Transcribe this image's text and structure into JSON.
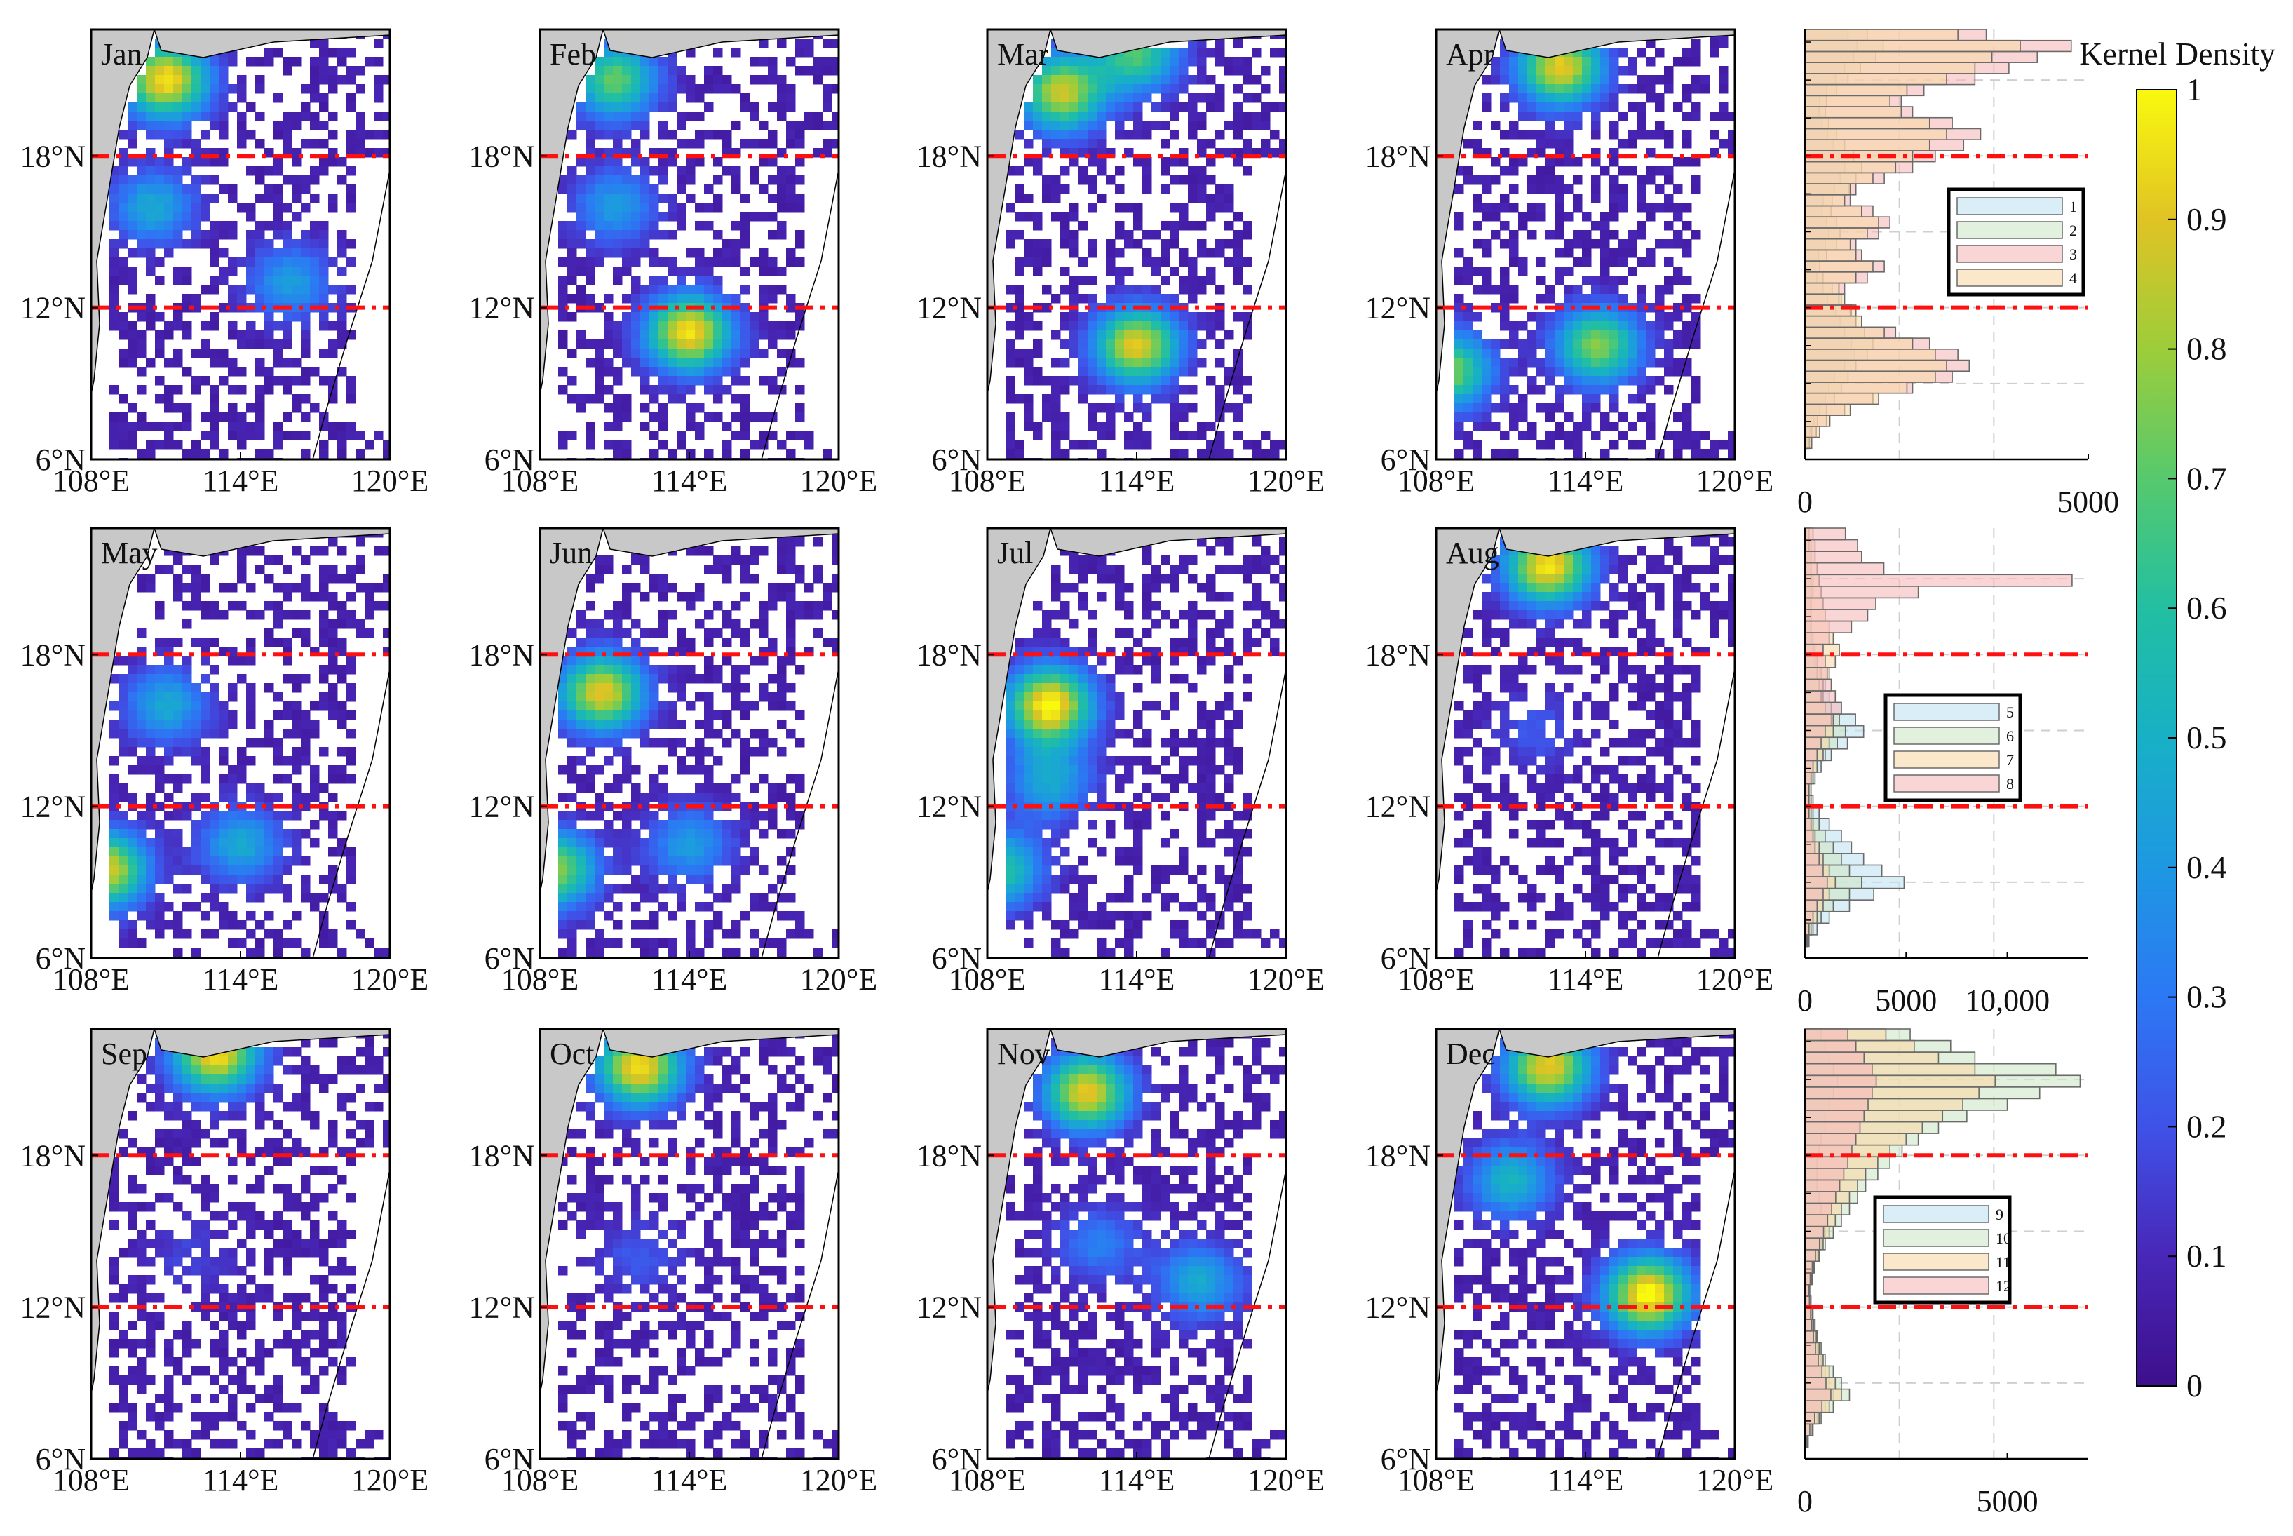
{
  "colorbar": {
    "title": "Kernel Density",
    "ticks": [
      "0",
      "0.1",
      "0.2",
      "0.3",
      "0.4",
      "0.5",
      "0.6",
      "0.7",
      "0.8",
      "0.9",
      "1"
    ],
    "range": [
      0,
      1
    ],
    "colormap": [
      "#3d0f8c",
      "#4827b8",
      "#3f52e8",
      "#2c78f4",
      "#1e98e2",
      "#17b0c6",
      "#22bfa2",
      "#56c96d",
      "#9dcd3a",
      "#e0c324",
      "#f9f90e"
    ]
  },
  "maps": {
    "lon_ticks": [
      "108°E",
      "114°E",
      "120°E"
    ],
    "lat_ticks": [
      "6°N",
      "12°N",
      "18°N"
    ],
    "lon_range": [
      108,
      120
    ],
    "lat_range": [
      6,
      23
    ],
    "reference_lines_lat": [
      12,
      18
    ],
    "reference_line_color": "#ff1010",
    "land_color": "#c8c8c8",
    "months": [
      {
        "label": "Jan",
        "hot": [
          [
            111.0,
            21.0,
            0.9
          ],
          [
            116.0,
            13.0,
            0.35
          ],
          [
            110.5,
            16.0,
            0.4
          ]
        ]
      },
      {
        "label": "Feb",
        "hot": [
          [
            114.0,
            11.0,
            0.9
          ],
          [
            111.0,
            21.0,
            0.65
          ],
          [
            111.0,
            16.0,
            0.35
          ]
        ]
      },
      {
        "label": "Mar",
        "hot": [
          [
            114.0,
            10.5,
            0.85
          ],
          [
            111.0,
            20.5,
            0.8
          ],
          [
            114.0,
            22.0,
            0.6
          ]
        ]
      },
      {
        "label": "Apr",
        "hot": [
          [
            113.0,
            21.5,
            0.85
          ],
          [
            114.5,
            10.5,
            0.7
          ],
          [
            108.5,
            9.5,
            0.7
          ]
        ]
      },
      {
        "label": "May",
        "hot": [
          [
            108.5,
            9.5,
            0.85
          ],
          [
            111.0,
            16.0,
            0.4
          ],
          [
            114.0,
            10.5,
            0.4
          ]
        ]
      },
      {
        "label": "Jun",
        "hot": [
          [
            110.5,
            16.5,
            0.85
          ],
          [
            108.5,
            9.5,
            0.75
          ],
          [
            114.0,
            10.5,
            0.35
          ]
        ]
      },
      {
        "label": "Jul",
        "hot": [
          [
            110.5,
            16.0,
            0.95
          ],
          [
            108.5,
            9.5,
            0.55
          ],
          [
            110.5,
            13.0,
            0.4
          ]
        ]
      },
      {
        "label": "Aug",
        "hot": [
          [
            112.5,
            21.5,
            0.9
          ],
          [
            112.0,
            15.0,
            0.15
          ]
        ]
      },
      {
        "label": "Sep",
        "hot": [
          [
            113.0,
            22.0,
            0.9
          ],
          [
            112.0,
            14.0,
            0.1
          ]
        ]
      },
      {
        "label": "Oct",
        "hot": [
          [
            112.0,
            21.5,
            0.9
          ],
          [
            112.0,
            14.0,
            0.15
          ]
        ]
      },
      {
        "label": "Nov",
        "hot": [
          [
            112.0,
            20.5,
            0.85
          ],
          [
            116.5,
            13.0,
            0.4
          ],
          [
            112.5,
            14.5,
            0.25
          ]
        ]
      },
      {
        "label": "Dec",
        "hot": [
          [
            116.5,
            12.5,
            0.95
          ],
          [
            112.5,
            21.5,
            0.85
          ],
          [
            111.0,
            17.0,
            0.45
          ]
        ]
      }
    ]
  },
  "chart_data": [
    {
      "type": "bar",
      "orientation": "horizontal",
      "x_ticks": [
        "0",
        "5000"
      ],
      "xlim": [
        0,
        5000
      ],
      "ylim": [
        6,
        23
      ],
      "reference_lines_lat": [
        12,
        18
      ],
      "legend": [
        "1",
        "2",
        "3",
        "4"
      ],
      "series": [
        {
          "name": "1",
          "color": "#bfe3f2",
          "values": [
            0,
            40,
            90,
            160,
            260,
            360,
            420,
            520,
            700,
            880,
            820,
            700,
            620,
            540,
            400,
            320,
            210,
            180,
            240,
            360,
            420,
            380,
            300,
            320,
            520,
            620,
            700,
            600,
            500,
            400,
            300,
            250,
            260,
            380,
            540,
            700,
            860,
            920,
            760
          ]
        },
        {
          "name": "2",
          "color": "#cfe8c6",
          "values": [
            0,
            60,
            120,
            220,
            380,
            520,
            640,
            760,
            900,
            1100,
            1200,
            1050,
            900,
            820,
            640,
            480,
            320,
            260,
            380,
            560,
            620,
            560,
            460,
            480,
            780,
            900,
            1000,
            860,
            700,
            560,
            420,
            360,
            380,
            560,
            760,
            980,
            1250,
            1380,
            1100
          ]
        },
        {
          "name": "3",
          "color": "#f6b9ba",
          "values": [
            0,
            80,
            200,
            380,
            700,
            1200,
            1900,
            2600,
            2900,
            2700,
            2200,
            1600,
            900,
            800,
            600,
            700,
            1100,
            1400,
            1000,
            900,
            1300,
            1500,
            1200,
            800,
            900,
            1400,
            1900,
            2300,
            2800,
            3100,
            2600,
            1900,
            1700,
            2100,
            3000,
            3600,
            4100,
            4700,
            3200
          ]
        },
        {
          "name": "4",
          "color": "#f8d9a7",
          "values": [
            0,
            120,
            260,
            440,
            800,
            1300,
            1800,
            2300,
            2500,
            2300,
            1900,
            1400,
            1000,
            900,
            700,
            600,
            900,
            1200,
            900,
            800,
            1100,
            1300,
            1000,
            700,
            800,
            1200,
            1600,
            1900,
            2200,
            2500,
            2200,
            1700,
            1500,
            1800,
            2500,
            3000,
            3300,
            3800,
            2700
          ]
        }
      ]
    },
    {
      "type": "bar",
      "orientation": "horizontal",
      "x_ticks": [
        "0",
        "5000",
        "10,000"
      ],
      "xlim": [
        0,
        14000
      ],
      "ylim": [
        6,
        23
      ],
      "reference_lines_lat": [
        12,
        18
      ],
      "legend": [
        "5",
        "6",
        "7",
        "8"
      ],
      "series": [
        {
          "name": "5",
          "color": "#bfe3f2",
          "values": [
            0,
            200,
            600,
            1200,
            2200,
            3400,
            4900,
            3800,
            2900,
            2300,
            1800,
            1200,
            700,
            400,
            300,
            500,
            800,
            1300,
            2100,
            2900,
            2500,
            1800,
            1200,
            1000,
            800,
            600,
            500,
            400,
            300,
            300,
            300,
            400,
            400,
            300,
            300,
            300,
            200
          ]
        },
        {
          "name": "6",
          "color": "#cfe8c6",
          "values": [
            0,
            150,
            400,
            800,
            1400,
            2200,
            2800,
            2200,
            1800,
            1400,
            1000,
            700,
            400,
            300,
            200,
            400,
            600,
            1000,
            1600,
            2000,
            1700,
            1300,
            900,
            700,
            600,
            500,
            400,
            300,
            300,
            300,
            300,
            300,
            300,
            300,
            300,
            200,
            200
          ]
        },
        {
          "name": "7",
          "color": "#f8d9a7",
          "values": [
            0,
            100,
            300,
            600,
            900,
            1200,
            1500,
            1200,
            900,
            700,
            500,
            400,
            300,
            300,
            300,
            400,
            600,
            900,
            1200,
            1400,
            1300,
            1000,
            800,
            900,
            1200,
            1500,
            1700,
            1400,
            1200,
            1000,
            900,
            800,
            700,
            600,
            500,
            500,
            400
          ]
        },
        {
          "name": "8",
          "color": "#f6b9ba",
          "values": [
            0,
            80,
            200,
            400,
            600,
            900,
            1100,
            900,
            700,
            500,
            400,
            300,
            200,
            200,
            200,
            300,
            400,
            600,
            800,
            1000,
            1400,
            1800,
            1500,
            1300,
            1100,
            1000,
            900,
            1200,
            2300,
            3100,
            3500,
            5600,
            13200,
            3900,
            2800,
            2600,
            2000
          ]
        }
      ]
    },
    {
      "type": "bar",
      "orientation": "horizontal",
      "x_ticks": [
        "0",
        "5000"
      ],
      "xlim": [
        0,
        7000
      ],
      "ylim": [
        6,
        23
      ],
      "reference_lines_lat": [
        12,
        18
      ],
      "legend": [
        "9",
        "10",
        "11",
        "12"
      ],
      "series": [
        {
          "name": "9",
          "color": "#bfe3f2",
          "values": [
            0,
            60,
            150,
            300,
            500,
            700,
            600,
            500,
            400,
            300,
            250,
            200,
            150,
            120,
            100,
            150,
            200,
            300,
            400,
            500,
            500,
            400,
            350,
            300,
            300,
            300,
            350,
            400,
            500,
            500,
            600,
            700,
            800,
            700,
            600,
            500,
            400
          ]
        },
        {
          "name": "10",
          "color": "#cfe8c6",
          "values": [
            0,
            80,
            200,
            400,
            700,
            1100,
            900,
            700,
            500,
            400,
            300,
            250,
            200,
            150,
            120,
            180,
            240,
            360,
            500,
            700,
            900,
            1100,
            1300,
            1500,
            1800,
            2100,
            2400,
            2800,
            3300,
            4000,
            5000,
            5800,
            6800,
            6200,
            4200,
            3600,
            2600
          ]
        },
        {
          "name": "11",
          "color": "#f8d9a7",
          "values": [
            0,
            70,
            180,
            350,
            600,
            900,
            750,
            600,
            450,
            350,
            280,
            220,
            180,
            140,
            110,
            160,
            220,
            330,
            450,
            600,
            750,
            900,
            1100,
            1300,
            1500,
            1800,
            2100,
            2500,
            2900,
            3400,
            3900,
            4300,
            4700,
            4200,
            3300,
            2700,
            2000
          ]
        },
        {
          "name": "12",
          "color": "#f6b9ba",
          "values": [
            0,
            50,
            120,
            240,
            420,
            640,
            520,
            420,
            330,
            260,
            210,
            170,
            140,
            110,
            90,
            130,
            180,
            260,
            360,
            460,
            560,
            660,
            760,
            860,
            960,
            1060,
            1160,
            1260,
            1360,
            1460,
            1560,
            1660,
            1760,
            1660,
            1460,
            1260,
            1060
          ]
        }
      ]
    }
  ]
}
